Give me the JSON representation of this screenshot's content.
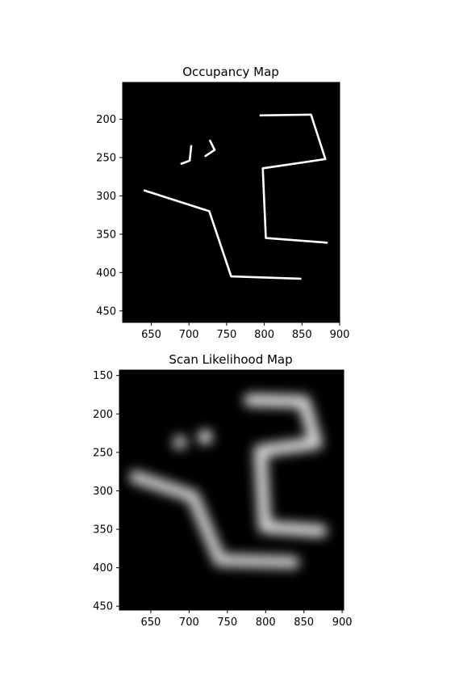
{
  "chart_data": [
    {
      "type": "heatmap",
      "title": "Occupancy Map",
      "colormap": "gray",
      "background_color": "#000000",
      "xlim": [
        612,
        900
      ],
      "ylim": [
        465,
        152
      ],
      "xticks": [
        650,
        700,
        750,
        800,
        850,
        900
      ],
      "yticks": [
        200,
        250,
        300,
        350,
        400,
        450
      ],
      "xtick_labels": [
        "650",
        "700",
        "750",
        "800",
        "850",
        "900"
      ],
      "ytick_labels": [
        "200",
        "250",
        "300",
        "350",
        "400",
        "450"
      ],
      "grid": false,
      "occupied_cells": [
        {
          "path": [
            [
              795,
              195
            ],
            [
              862,
              194
            ],
            [
              881,
              252
            ],
            [
              798,
              264
            ],
            [
              802,
              355
            ],
            [
              883,
              361
            ]
          ]
        },
        {
          "path": [
            [
              641,
              293
            ],
            [
              727,
              320
            ],
            [
              756,
              405
            ],
            [
              848,
              408
            ]
          ]
        },
        {
          "path": [
            [
              690,
              258
            ],
            [
              701,
              254
            ],
            [
              703,
              235
            ]
          ]
        },
        {
          "path": [
            [
              722,
              248
            ],
            [
              734,
              240
            ],
            [
              728,
              228
            ]
          ]
        }
      ]
    },
    {
      "type": "heatmap",
      "title": "Scan Likelihood Map",
      "colormap": "gray",
      "background_color": "#000000",
      "xlim": [
        609,
        902
      ],
      "ylim": [
        455,
        143
      ],
      "xticks": [
        650,
        700,
        750,
        800,
        850,
        900
      ],
      "yticks": [
        150,
        200,
        250,
        300,
        350,
        400,
        450
      ],
      "xtick_labels": [
        "650",
        "700",
        "750",
        "800",
        "850",
        "900"
      ],
      "ytick_labels": [
        "150",
        "200",
        "250",
        "300",
        "350",
        "400",
        "450"
      ],
      "grid": false,
      "likelihood_ridges": [
        {
          "path": [
            [
              780,
              182
            ],
            [
              850,
              184
            ],
            [
              866,
              238
            ],
            [
              793,
              248
            ],
            [
              799,
              347
            ],
            [
              872,
              352
            ]
          ],
          "intensity": 0.85
        },
        {
          "path": [
            [
              630,
              282
            ],
            [
              705,
              307
            ],
            [
              740,
              390
            ],
            [
              836,
              393
            ]
          ],
          "intensity": 0.8
        },
        {
          "path": [
            [
              688,
              237
            ]
          ],
          "intensity": 0.75
        },
        {
          "path": [
            [
              721,
              230
            ]
          ],
          "intensity": 0.9
        }
      ]
    }
  ]
}
